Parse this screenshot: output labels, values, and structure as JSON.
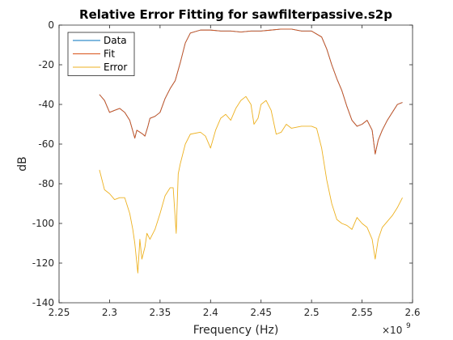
{
  "chart_data": {
    "type": "line",
    "title": "Relative Error Fitting for sawfilterpassive.s2p",
    "xlabel": "Frequency (Hz)",
    "ylabel": "dB",
    "x_exponent_base": "×10",
    "x_exponent": "9",
    "xlim": [
      2.25,
      2.6
    ],
    "ylim": [
      -140,
      0
    ],
    "xticks": [
      "2.25",
      "2.3",
      "2.35",
      "2.4",
      "2.45",
      "2.5",
      "2.55",
      "2.6"
    ],
    "yticks": [
      "0",
      "-20",
      "-40",
      "-60",
      "-80",
      "-100",
      "-120",
      "-140"
    ],
    "grid": false,
    "legend_position": "top-left",
    "series": [
      {
        "name": "Data",
        "color": "#0072BD",
        "points": [
          [
            2.29,
            -35
          ],
          [
            2.295,
            -38
          ],
          [
            2.3,
            -44
          ],
          [
            2.305,
            -43
          ],
          [
            2.31,
            -42
          ],
          [
            2.315,
            -44
          ],
          [
            2.32,
            -48
          ],
          [
            2.325,
            -57
          ],
          [
            2.327,
            -53
          ],
          [
            2.33,
            -54
          ],
          [
            2.333,
            -55
          ],
          [
            2.335,
            -56
          ],
          [
            2.338,
            -51
          ],
          [
            2.34,
            -47
          ],
          [
            2.345,
            -46
          ],
          [
            2.35,
            -44
          ],
          [
            2.355,
            -37
          ],
          [
            2.36,
            -32
          ],
          [
            2.365,
            -28
          ],
          [
            2.37,
            -19
          ],
          [
            2.375,
            -9
          ],
          [
            2.38,
            -4
          ],
          [
            2.39,
            -2.5
          ],
          [
            2.4,
            -2.5
          ],
          [
            2.41,
            -3
          ],
          [
            2.42,
            -3
          ],
          [
            2.43,
            -3.5
          ],
          [
            2.44,
            -3
          ],
          [
            2.45,
            -3
          ],
          [
            2.46,
            -2.5
          ],
          [
            2.47,
            -2
          ],
          [
            2.48,
            -2
          ],
          [
            2.49,
            -3
          ],
          [
            2.5,
            -3
          ],
          [
            2.51,
            -6
          ],
          [
            2.515,
            -12
          ],
          [
            2.52,
            -20
          ],
          [
            2.525,
            -27
          ],
          [
            2.53,
            -33
          ],
          [
            2.535,
            -41
          ],
          [
            2.54,
            -48
          ],
          [
            2.545,
            -51
          ],
          [
            2.55,
            -50
          ],
          [
            2.555,
            -48
          ],
          [
            2.56,
            -53
          ],
          [
            2.563,
            -65
          ],
          [
            2.566,
            -58
          ],
          [
            2.57,
            -53
          ],
          [
            2.575,
            -48
          ],
          [
            2.58,
            -44
          ],
          [
            2.585,
            -40
          ],
          [
            2.59,
            -39
          ]
        ]
      },
      {
        "name": "Fit",
        "color": "#D95319",
        "points": [
          [
            2.29,
            -35
          ],
          [
            2.295,
            -38
          ],
          [
            2.3,
            -44
          ],
          [
            2.305,
            -43
          ],
          [
            2.31,
            -42
          ],
          [
            2.315,
            -44
          ],
          [
            2.32,
            -48
          ],
          [
            2.325,
            -57
          ],
          [
            2.327,
            -53
          ],
          [
            2.33,
            -54
          ],
          [
            2.333,
            -55
          ],
          [
            2.335,
            -56
          ],
          [
            2.338,
            -51
          ],
          [
            2.34,
            -47
          ],
          [
            2.345,
            -46
          ],
          [
            2.35,
            -44
          ],
          [
            2.355,
            -37
          ],
          [
            2.36,
            -32
          ],
          [
            2.365,
            -28
          ],
          [
            2.37,
            -19
          ],
          [
            2.375,
            -9
          ],
          [
            2.38,
            -4
          ],
          [
            2.39,
            -2.5
          ],
          [
            2.4,
            -2.5
          ],
          [
            2.41,
            -3
          ],
          [
            2.42,
            -3
          ],
          [
            2.43,
            -3.5
          ],
          [
            2.44,
            -3
          ],
          [
            2.45,
            -3
          ],
          [
            2.46,
            -2.5
          ],
          [
            2.47,
            -2
          ],
          [
            2.48,
            -2
          ],
          [
            2.49,
            -3
          ],
          [
            2.5,
            -3
          ],
          [
            2.51,
            -6
          ],
          [
            2.515,
            -12
          ],
          [
            2.52,
            -20
          ],
          [
            2.525,
            -27
          ],
          [
            2.53,
            -33
          ],
          [
            2.535,
            -41
          ],
          [
            2.54,
            -48
          ],
          [
            2.545,
            -51
          ],
          [
            2.55,
            -50
          ],
          [
            2.555,
            -48
          ],
          [
            2.56,
            -53
          ],
          [
            2.563,
            -65
          ],
          [
            2.566,
            -58
          ],
          [
            2.57,
            -53
          ],
          [
            2.575,
            -48
          ],
          [
            2.58,
            -44
          ],
          [
            2.585,
            -40
          ],
          [
            2.59,
            -39
          ]
        ]
      },
      {
        "name": "Error",
        "color": "#EDB120",
        "points": [
          [
            2.29,
            -73
          ],
          [
            2.295,
            -83
          ],
          [
            2.3,
            -85
          ],
          [
            2.305,
            -88
          ],
          [
            2.31,
            -87
          ],
          [
            2.315,
            -87
          ],
          [
            2.32,
            -95
          ],
          [
            2.323,
            -103
          ],
          [
            2.325,
            -110
          ],
          [
            2.328,
            -125
          ],
          [
            2.33,
            -108
          ],
          [
            2.332,
            -118
          ],
          [
            2.335,
            -112
          ],
          [
            2.337,
            -105
          ],
          [
            2.34,
            -108
          ],
          [
            2.345,
            -103
          ],
          [
            2.35,
            -95
          ],
          [
            2.355,
            -86
          ],
          [
            2.36,
            -82
          ],
          [
            2.363,
            -82
          ],
          [
            2.366,
            -105
          ],
          [
            2.368,
            -75
          ],
          [
            2.37,
            -70
          ],
          [
            2.375,
            -60
          ],
          [
            2.38,
            -55
          ],
          [
            2.39,
            -54
          ],
          [
            2.395,
            -56
          ],
          [
            2.4,
            -62
          ],
          [
            2.405,
            -53
          ],
          [
            2.41,
            -47
          ],
          [
            2.415,
            -45
          ],
          [
            2.42,
            -48
          ],
          [
            2.425,
            -42
          ],
          [
            2.43,
            -38
          ],
          [
            2.435,
            -36
          ],
          [
            2.44,
            -40
          ],
          [
            2.443,
            -50
          ],
          [
            2.447,
            -47
          ],
          [
            2.45,
            -40
          ],
          [
            2.455,
            -38
          ],
          [
            2.46,
            -43
          ],
          [
            2.465,
            -55
          ],
          [
            2.47,
            -54
          ],
          [
            2.475,
            -50
          ],
          [
            2.48,
            -52
          ],
          [
            2.49,
            -51
          ],
          [
            2.5,
            -51
          ],
          [
            2.505,
            -52
          ],
          [
            2.51,
            -62
          ],
          [
            2.515,
            -78
          ],
          [
            2.52,
            -90
          ],
          [
            2.525,
            -98
          ],
          [
            2.53,
            -100
          ],
          [
            2.535,
            -101
          ],
          [
            2.54,
            -103
          ],
          [
            2.545,
            -97
          ],
          [
            2.55,
            -100
          ],
          [
            2.555,
            -102
          ],
          [
            2.56,
            -108
          ],
          [
            2.563,
            -118
          ],
          [
            2.566,
            -108
          ],
          [
            2.57,
            -102
          ],
          [
            2.575,
            -99
          ],
          [
            2.58,
            -96
          ],
          [
            2.585,
            -92
          ],
          [
            2.59,
            -87
          ]
        ]
      }
    ]
  }
}
